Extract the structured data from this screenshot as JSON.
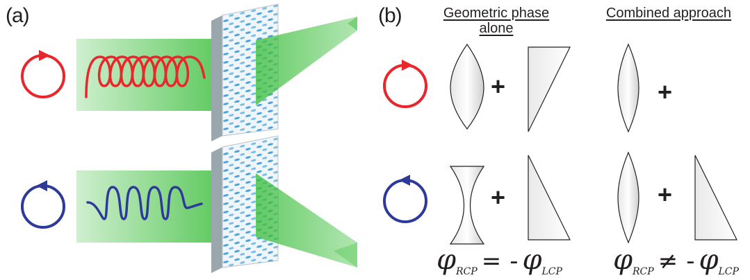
{
  "panels": {
    "a": {
      "label": "(a)"
    },
    "b": {
      "label": "(b)",
      "column_headers": [
        "Geometric phase alone",
        "Combined approach"
      ],
      "header_lines": {
        "geometric_line1": "Geometric phase",
        "geometric_line2": "alone",
        "combined": "Combined approach"
      },
      "plus_sign": "+",
      "equation_left": {
        "phi": "φ",
        "sub_rcp": "RCP",
        "relation": "=",
        "neg": "-",
        "sub_lcp": "LCP"
      },
      "equation_right": {
        "phi": "φ",
        "sub_rcp": "RCP",
        "relation": "≠",
        "neg": "-",
        "sub_lcp": "LCP"
      }
    }
  },
  "colors": {
    "rcp": "#e8262b",
    "lcp": "#2e3a9a",
    "beam": "#3fbf3f",
    "metasurface": "#b9c3c7",
    "pillar": "#4aa3dc"
  }
}
